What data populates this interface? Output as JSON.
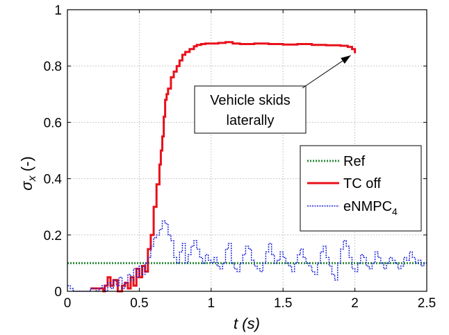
{
  "chart_data": {
    "type": "line",
    "xlabel": "t (s)",
    "ylabel_symbol": "σ",
    "ylabel_subscript": "x",
    "ylabel_unit": " (-)",
    "xlim": [
      0,
      2.5
    ],
    "ylim": [
      0,
      1
    ],
    "xticks": [
      0,
      0.5,
      1,
      1.5,
      2,
      2.5
    ],
    "xtick_labels": [
      "0",
      "0.5",
      "1",
      "1.5",
      "2",
      "2.5"
    ],
    "yticks": [
      0,
      0.2,
      0.4,
      0.6,
      0.8,
      1
    ],
    "ytick_labels": [
      "0",
      "0.2",
      "0.4",
      "0.6",
      "0.8",
      "1"
    ],
    "grid": true,
    "legend_position": "center-right",
    "series": [
      {
        "name": "Ref",
        "style": "dotted",
        "color": "#2e8b3a",
        "x": [
          0,
          2.5
        ],
        "y": [
          0.1,
          0.1
        ]
      },
      {
        "name": "TC off",
        "style": "solid",
        "color": "#e8101a",
        "x": [
          0.16,
          0.2,
          0.25,
          0.26,
          0.28,
          0.3,
          0.32,
          0.35,
          0.38,
          0.4,
          0.42,
          0.44,
          0.46,
          0.48,
          0.5,
          0.52,
          0.54,
          0.56,
          0.58,
          0.6,
          0.62,
          0.64,
          0.65,
          0.66,
          0.67,
          0.68,
          0.69,
          0.7,
          0.72,
          0.74,
          0.76,
          0.78,
          0.8,
          0.82,
          0.85,
          0.88,
          0.9,
          0.93,
          0.96,
          1.0,
          1.05,
          1.1,
          1.15,
          1.2,
          1.3,
          1.4,
          1.5,
          1.6,
          1.7,
          1.8,
          1.9,
          1.95,
          1.98,
          2.0
        ],
        "y": [
          0.01,
          0.01,
          0.0,
          0.02,
          0.05,
          0.02,
          0.04,
          0.0,
          0.02,
          0.03,
          0.01,
          0.05,
          0.02,
          0.08,
          0.05,
          0.09,
          0.07,
          0.15,
          0.2,
          0.3,
          0.38,
          0.45,
          0.5,
          0.55,
          0.62,
          0.68,
          0.7,
          0.72,
          0.76,
          0.78,
          0.8,
          0.82,
          0.84,
          0.85,
          0.86,
          0.87,
          0.875,
          0.878,
          0.88,
          0.88,
          0.882,
          0.885,
          0.88,
          0.878,
          0.88,
          0.878,
          0.876,
          0.878,
          0.875,
          0.874,
          0.872,
          0.868,
          0.86,
          0.845
        ]
      },
      {
        "name": "eNMPC",
        "name_subscript": "4",
        "style": "dotted",
        "color": "#1a22d8",
        "x": [
          0,
          0.02,
          0.04,
          0.06,
          0.08,
          0.1,
          0.12,
          0.14,
          0.16,
          0.18,
          0.2,
          0.22,
          0.24,
          0.26,
          0.28,
          0.3,
          0.32,
          0.34,
          0.36,
          0.38,
          0.4,
          0.42,
          0.44,
          0.46,
          0.48,
          0.5,
          0.52,
          0.54,
          0.56,
          0.58,
          0.6,
          0.62,
          0.64,
          0.66,
          0.68,
          0.7,
          0.72,
          0.74,
          0.76,
          0.78,
          0.8,
          0.82,
          0.84,
          0.86,
          0.88,
          0.9,
          0.92,
          0.94,
          0.96,
          0.98,
          1.0,
          1.02,
          1.04,
          1.06,
          1.08,
          1.1,
          1.12,
          1.14,
          1.16,
          1.18,
          1.2,
          1.22,
          1.24,
          1.26,
          1.28,
          1.3,
          1.32,
          1.34,
          1.36,
          1.38,
          1.4,
          1.42,
          1.44,
          1.46,
          1.48,
          1.5,
          1.52,
          1.54,
          1.56,
          1.58,
          1.6,
          1.62,
          1.64,
          1.66,
          1.68,
          1.7,
          1.72,
          1.74,
          1.76,
          1.78,
          1.8,
          1.82,
          1.84,
          1.86,
          1.88,
          1.9,
          1.92,
          1.94,
          1.96,
          1.98,
          2.0,
          2.02,
          2.04,
          2.06,
          2.08,
          2.1,
          2.12,
          2.14,
          2.16,
          2.18,
          2.2,
          2.22,
          2.24,
          2.26,
          2.28,
          2.3,
          2.32,
          2.34,
          2.36,
          2.38,
          2.4,
          2.42,
          2.44,
          2.46,
          2.48,
          2.5
        ],
        "y": [
          0.02,
          0.01,
          0.0,
          0.0,
          0.0,
          0.0,
          0.0,
          0.0,
          0.01,
          0.01,
          0.0,
          0.01,
          0.02,
          0.0,
          0.03,
          0.01,
          0.04,
          0.02,
          0.05,
          0.01,
          0.03,
          0.06,
          0.04,
          0.08,
          0.05,
          0.09,
          0.06,
          0.1,
          0.12,
          0.16,
          0.19,
          0.2,
          0.22,
          0.25,
          0.24,
          0.2,
          0.18,
          0.12,
          0.1,
          0.14,
          0.17,
          0.1,
          0.13,
          0.16,
          0.18,
          0.15,
          0.12,
          0.1,
          0.13,
          0.11,
          0.1,
          0.12,
          0.09,
          0.08,
          0.1,
          0.15,
          0.17,
          0.1,
          0.08,
          0.07,
          0.1,
          0.13,
          0.16,
          0.15,
          0.11,
          0.09,
          0.08,
          0.07,
          0.1,
          0.14,
          0.17,
          0.13,
          0.1,
          0.11,
          0.14,
          0.12,
          0.1,
          0.09,
          0.07,
          0.1,
          0.13,
          0.15,
          0.12,
          0.1,
          0.09,
          0.07,
          0.06,
          0.1,
          0.14,
          0.16,
          0.12,
          0.09,
          0.06,
          0.04,
          0.1,
          0.15,
          0.18,
          0.16,
          0.12,
          0.08,
          0.07,
          0.1,
          0.13,
          0.12,
          0.09,
          0.08,
          0.1,
          0.14,
          0.12,
          0.1,
          0.08,
          0.1,
          0.12,
          0.11,
          0.1,
          0.08,
          0.09,
          0.12,
          0.11,
          0.14,
          0.12,
          0.1,
          0.11,
          0.09,
          0.1,
          0.1
        ]
      }
    ],
    "annotation": {
      "lines": [
        "Vehicle skids",
        "laterally"
      ],
      "arrow_to": [
        2.0,
        0.845
      ]
    }
  }
}
